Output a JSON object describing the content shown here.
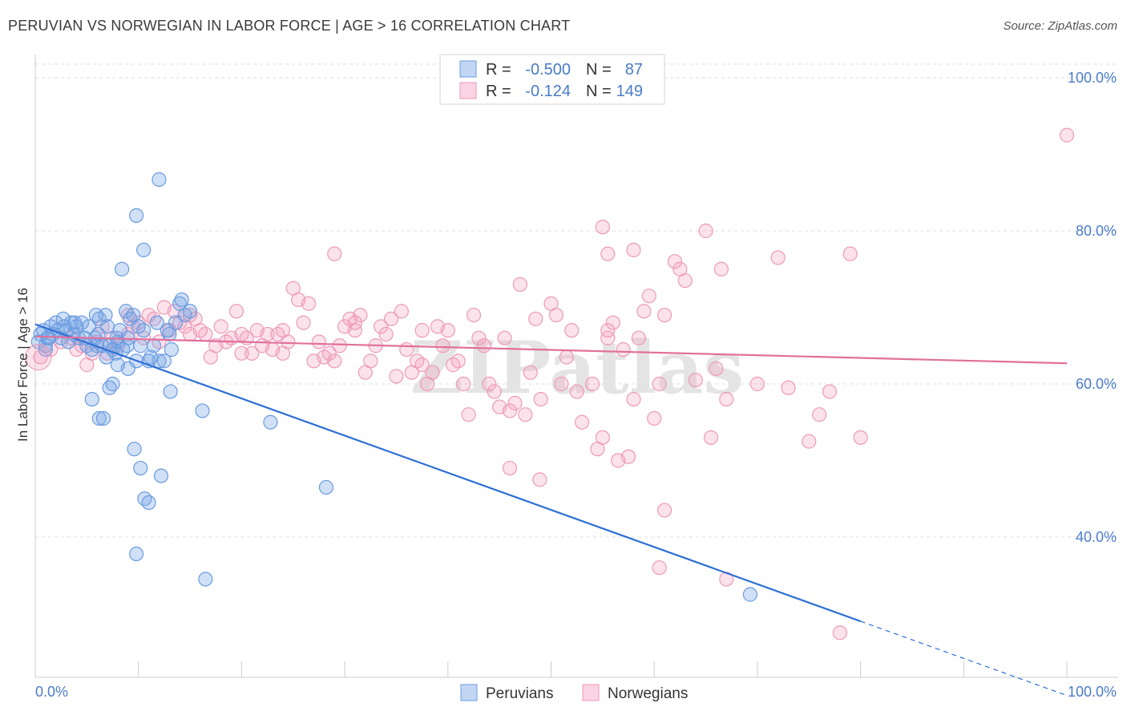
{
  "title": "PERUVIAN VS NORWEGIAN IN LABOR FORCE | AGE > 16 CORRELATION CHART",
  "source": "Source: ZipAtlas.com",
  "watermark": "ZIPatlas",
  "colors": {
    "blue_fill": "rgba(120,165,230,0.35)",
    "blue_stroke": "#6a9be0",
    "blue_line": "#2d6fd6",
    "pink_fill": "rgba(245,160,190,0.30)",
    "pink_stroke": "#ec9ab8",
    "pink_line": "#e0709a",
    "grid": "#dddddd",
    "tick_text": "#4a7cc9"
  },
  "chart_data": {
    "type": "scatter",
    "title": "PERUVIAN VS NORWEGIAN IN LABOR FORCE | AGE > 16 CORRELATION CHART",
    "xlabel": "",
    "ylabel": "In Labor Force | Age > 16",
    "xlim": [
      0,
      100
    ],
    "ylim": [
      20,
      102
    ],
    "x_ticks": [
      "0.0%",
      "100.0%"
    ],
    "y_ticks": [
      {
        "value": 40,
        "label": "40.0%"
      },
      {
        "value": 60,
        "label": "60.0%"
      },
      {
        "value": 80,
        "label": "80.0%"
      },
      {
        "value": 100,
        "label": "100.0%"
      }
    ],
    "grid": true,
    "legend": {
      "placement": "top-center",
      "rows": [
        {
          "r_label": "R =",
          "r_value": "-0.500",
          "n_label": "N =",
          "n_value": "87"
        },
        {
          "r_label": "R =",
          "r_value": "-0.124",
          "n_label": "N =",
          "n_value": "149"
        }
      ]
    },
    "series": [
      {
        "name": "Peruvians",
        "color": "#6a9be0",
        "trend": {
          "x0": 0,
          "y0": 67.8,
          "x1": 80,
          "y1": 29.0,
          "dashed_to_x": 100,
          "dashed_to_y": 19.3
        },
        "points": [
          [
            0.3,
            65.5
          ],
          [
            0.5,
            66.5
          ],
          [
            0.8,
            67.0
          ],
          [
            1.0,
            65.0
          ],
          [
            1.2,
            66.0
          ],
          [
            1.5,
            67.5
          ],
          [
            1.7,
            66.5
          ],
          [
            2.0,
            68.0
          ],
          [
            2.2,
            67.0
          ],
          [
            2.5,
            66.0
          ],
          [
            2.7,
            68.5
          ],
          [
            3.0,
            67.0
          ],
          [
            3.2,
            65.5
          ],
          [
            3.5,
            68.0
          ],
          [
            3.7,
            66.5
          ],
          [
            4.0,
            67.5
          ],
          [
            4.2,
            66.0
          ],
          [
            4.5,
            68.0
          ],
          [
            5.0,
            65.0
          ],
          [
            5.2,
            67.5
          ],
          [
            5.5,
            64.5
          ],
          [
            5.8,
            66.0
          ],
          [
            6.0,
            65.0
          ],
          [
            6.2,
            68.5
          ],
          [
            6.5,
            65.0
          ],
          [
            6.8,
            69.0
          ],
          [
            7.0,
            67.5
          ],
          [
            7.2,
            65.0
          ],
          [
            7.5,
            64.5
          ],
          [
            7.8,
            64.0
          ],
          [
            8.0,
            65.5
          ],
          [
            8.2,
            67.0
          ],
          [
            8.5,
            64.5
          ],
          [
            8.8,
            69.5
          ],
          [
            9.0,
            66.0
          ],
          [
            9.2,
            68.5
          ],
          [
            9.5,
            69.0
          ],
          [
            9.8,
            63.0
          ],
          [
            10.0,
            67.5
          ],
          [
            10.2,
            65.0
          ],
          [
            10.5,
            67.0
          ],
          [
            11.0,
            63.0
          ],
          [
            11.5,
            65.0
          ],
          [
            11.8,
            68.0
          ],
          [
            12.0,
            63.0
          ],
          [
            12.5,
            63.0
          ],
          [
            13.0,
            66.5
          ],
          [
            13.2,
            64.5
          ],
          [
            14.0,
            70.5
          ],
          [
            14.2,
            71.0
          ],
          [
            14.5,
            69.0
          ],
          [
            5.5,
            58.0
          ],
          [
            6.2,
            55.5
          ],
          [
            6.6,
            55.5
          ],
          [
            7.2,
            59.5
          ],
          [
            7.5,
            60.0
          ],
          [
            8.0,
            62.5
          ],
          [
            9.0,
            62.0
          ],
          [
            9.6,
            51.5
          ],
          [
            10.2,
            49.0
          ],
          [
            10.6,
            45.0
          ],
          [
            11.0,
            44.5
          ],
          [
            12.2,
            48.0
          ],
          [
            13.1,
            59.0
          ],
          [
            9.8,
            37.8
          ],
          [
            16.2,
            56.5
          ],
          [
            22.8,
            55.0
          ],
          [
            28.2,
            46.5
          ],
          [
            16.5,
            34.5
          ],
          [
            9.8,
            82.0
          ],
          [
            12.0,
            86.7
          ],
          [
            10.5,
            77.5
          ],
          [
            8.4,
            75.0
          ],
          [
            69.3,
            32.5
          ],
          [
            1.0,
            64.5
          ],
          [
            1.3,
            66.0
          ],
          [
            2.8,
            67.5
          ],
          [
            3.8,
            68.0
          ],
          [
            4.8,
            66.0
          ],
          [
            6.1,
            66.5
          ],
          [
            7.9,
            66.0
          ],
          [
            8.9,
            65.0
          ],
          [
            11.2,
            63.5
          ],
          [
            12.8,
            67.0
          ],
          [
            13.6,
            68.0
          ],
          [
            15.0,
            69.5
          ],
          [
            5.9,
            69.0
          ],
          [
            6.9,
            63.5
          ]
        ]
      },
      {
        "name": "Norwegians",
        "color": "#ec9ab8",
        "trend": {
          "x0": 0,
          "y0": 66.2,
          "x1": 100,
          "y1": 62.7
        },
        "points": [
          [
            0.5,
            63.5
          ],
          [
            1.5,
            64.5
          ],
          [
            2.5,
            65.5
          ],
          [
            3.5,
            66.0
          ],
          [
            4.0,
            64.5
          ],
          [
            4.5,
            65.0
          ],
          [
            5.0,
            62.5
          ],
          [
            5.5,
            64.0
          ],
          [
            6.0,
            65.5
          ],
          [
            7.0,
            64.0
          ],
          [
            7.5,
            66.0
          ],
          [
            8.0,
            65.0
          ],
          [
            9.0,
            66.5
          ],
          [
            9.5,
            67.5
          ],
          [
            10.0,
            68.0
          ],
          [
            10.5,
            66.0
          ],
          [
            11.0,
            69.0
          ],
          [
            11.5,
            68.5
          ],
          [
            12.0,
            65.5
          ],
          [
            12.5,
            70.0
          ],
          [
            13.0,
            67.0
          ],
          [
            13.5,
            69.5
          ],
          [
            14.0,
            68.0
          ],
          [
            14.5,
            67.5
          ],
          [
            15.0,
            66.5
          ],
          [
            15.5,
            68.5
          ],
          [
            16.0,
            67.0
          ],
          [
            16.5,
            66.5
          ],
          [
            17.0,
            63.5
          ],
          [
            18.0,
            67.5
          ],
          [
            18.5,
            65.5
          ],
          [
            19.0,
            66.0
          ],
          [
            19.5,
            69.5
          ],
          [
            20.0,
            66.5
          ],
          [
            20.5,
            66.0
          ],
          [
            21.0,
            64.0
          ],
          [
            21.5,
            67.0
          ],
          [
            22.0,
            65.0
          ],
          [
            22.5,
            66.5
          ],
          [
            23.0,
            64.5
          ],
          [
            23.5,
            66.5
          ],
          [
            24.0,
            64.0
          ],
          [
            24.5,
            65.5
          ],
          [
            25.0,
            72.5
          ],
          [
            25.5,
            71.0
          ],
          [
            26.0,
            68.0
          ],
          [
            26.5,
            70.5
          ],
          [
            27.0,
            63.0
          ],
          [
            27.5,
            65.5
          ],
          [
            28.0,
            63.5
          ],
          [
            28.5,
            64.0
          ],
          [
            29.0,
            63.0
          ],
          [
            29.5,
            65.0
          ],
          [
            30.0,
            67.5
          ],
          [
            30.5,
            68.5
          ],
          [
            31.0,
            67.0
          ],
          [
            31.5,
            69.0
          ],
          [
            32.0,
            61.5
          ],
          [
            32.5,
            63.0
          ],
          [
            33.0,
            65.0
          ],
          [
            33.5,
            67.5
          ],
          [
            34.0,
            66.5
          ],
          [
            34.5,
            68.5
          ],
          [
            35.0,
            61.0
          ],
          [
            35.5,
            69.5
          ],
          [
            36.0,
            64.5
          ],
          [
            36.5,
            61.5
          ],
          [
            37.0,
            63.0
          ],
          [
            37.5,
            62.5
          ],
          [
            38.0,
            60.0
          ],
          [
            38.5,
            61.5
          ],
          [
            39.0,
            67.5
          ],
          [
            39.5,
            65.0
          ],
          [
            40.0,
            67.0
          ],
          [
            40.5,
            62.5
          ],
          [
            41.0,
            63.0
          ],
          [
            41.5,
            60.0
          ],
          [
            42.0,
            56.0
          ],
          [
            42.5,
            69.0
          ],
          [
            43.0,
            66.0
          ],
          [
            43.5,
            65.0
          ],
          [
            44.0,
            60.0
          ],
          [
            44.5,
            59.0
          ],
          [
            45.0,
            57.0
          ],
          [
            45.5,
            66.0
          ],
          [
            46.0,
            56.5
          ],
          [
            46.5,
            57.5
          ],
          [
            47.0,
            73.0
          ],
          [
            47.5,
            56.0
          ],
          [
            48.0,
            61.5
          ],
          [
            48.5,
            68.5
          ],
          [
            49.0,
            58.0
          ],
          [
            50.0,
            70.5
          ],
          [
            50.5,
            69.0
          ],
          [
            51.0,
            60.0
          ],
          [
            51.5,
            63.5
          ],
          [
            52.0,
            67.0
          ],
          [
            52.5,
            59.0
          ],
          [
            53.0,
            55.0
          ],
          [
            54.0,
            60.0
          ],
          [
            54.5,
            51.5
          ],
          [
            55.0,
            53.0
          ],
          [
            55.5,
            66.0
          ],
          [
            56.0,
            68.0
          ],
          [
            56.5,
            50.0
          ],
          [
            57.0,
            64.5
          ],
          [
            57.5,
            50.5
          ],
          [
            58.0,
            58.0
          ],
          [
            58.5,
            66.0
          ],
          [
            59.0,
            69.5
          ],
          [
            59.5,
            71.5
          ],
          [
            60.0,
            55.5
          ],
          [
            60.5,
            60.0
          ],
          [
            61.0,
            69.0
          ],
          [
            62.0,
            76.0
          ],
          [
            62.5,
            75.0
          ],
          [
            63.0,
            73.5
          ],
          [
            48.9,
            47.5
          ],
          [
            55.5,
            67.0
          ],
          [
            64.0,
            60.5
          ],
          [
            66.0,
            62.0
          ],
          [
            67.0,
            58.0
          ],
          [
            70.0,
            60.0
          ],
          [
            72.0,
            76.5
          ],
          [
            73.0,
            59.5
          ],
          [
            75.0,
            52.5
          ],
          [
            79.0,
            77.0
          ],
          [
            80.0,
            53.0
          ],
          [
            60.5,
            36.0
          ],
          [
            67.0,
            34.5
          ],
          [
            78.0,
            27.5
          ],
          [
            55.0,
            80.5
          ],
          [
            65.0,
            80.0
          ],
          [
            55.5,
            77.0
          ],
          [
            58.0,
            77.5
          ],
          [
            66.5,
            75.0
          ],
          [
            29.0,
            77.0
          ],
          [
            100.0,
            92.5
          ],
          [
            61.0,
            43.5
          ],
          [
            65.5,
            53.0
          ],
          [
            46.0,
            49.0
          ],
          [
            76.0,
            56.0
          ],
          [
            77.0,
            59.0
          ],
          [
            17.5,
            65.0
          ],
          [
            37.5,
            67.0
          ],
          [
            9.0,
            69.0
          ],
          [
            31.0,
            68.0
          ],
          [
            24.0,
            67.0
          ],
          [
            20.0,
            64.0
          ],
          [
            15.0,
            69.0
          ],
          [
            6.5,
            67.5
          ]
        ]
      }
    ]
  },
  "bottom_legend": [
    "Peruvians",
    "Norwegians"
  ]
}
